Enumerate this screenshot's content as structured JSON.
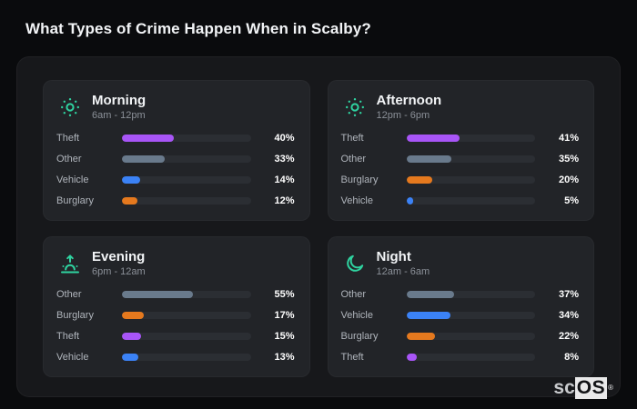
{
  "page": {
    "title": "What Types of Crime Happen When in Scalby?"
  },
  "logo": {
    "prefix": "sc",
    "suffix": "OS",
    "mark": "®"
  },
  "colors": {
    "background": "#0a0b0d",
    "container": "#17181b",
    "panel": "#222428",
    "track": "#2b2e33",
    "accent": "#2fd3a0",
    "title_text": "#f2f4f6",
    "label_text": "#b0b5bc",
    "subtitle_text": "#8b9098",
    "value_text": "#ffffff"
  },
  "category_colors": {
    "Theft": "#a855f7",
    "Other": "#697a8c",
    "Vehicle": "#3b82f6",
    "Burglary": "#e5791e"
  },
  "chart_data": [
    {
      "type": "bar",
      "orientation": "horizontal",
      "title": "Morning",
      "subtitle": "6am - 12pm",
      "icon": "sun-icon",
      "xlim": [
        0,
        100
      ],
      "categories": [
        "Theft",
        "Other",
        "Vehicle",
        "Burglary"
      ],
      "values": [
        40,
        33,
        14,
        12
      ],
      "value_labels": [
        "40%",
        "33%",
        "14%",
        "12%"
      ]
    },
    {
      "type": "bar",
      "orientation": "horizontal",
      "title": "Afternoon",
      "subtitle": "12pm - 6pm",
      "icon": "sun-icon",
      "xlim": [
        0,
        100
      ],
      "categories": [
        "Theft",
        "Other",
        "Burglary",
        "Vehicle"
      ],
      "values": [
        41,
        35,
        20,
        5
      ],
      "value_labels": [
        "41%",
        "35%",
        "20%",
        "5%"
      ]
    },
    {
      "type": "bar",
      "orientation": "horizontal",
      "title": "Evening",
      "subtitle": "6pm - 12am",
      "icon": "sunrise-icon",
      "xlim": [
        0,
        100
      ],
      "categories": [
        "Other",
        "Burglary",
        "Theft",
        "Vehicle"
      ],
      "values": [
        55,
        17,
        15,
        13
      ],
      "value_labels": [
        "55%",
        "17%",
        "15%",
        "13%"
      ]
    },
    {
      "type": "bar",
      "orientation": "horizontal",
      "title": "Night",
      "subtitle": "12am - 6am",
      "icon": "moon-icon",
      "xlim": [
        0,
        100
      ],
      "categories": [
        "Other",
        "Vehicle",
        "Burglary",
        "Theft"
      ],
      "values": [
        37,
        34,
        22,
        8
      ],
      "value_labels": [
        "37%",
        "34%",
        "22%",
        "8%"
      ]
    }
  ]
}
